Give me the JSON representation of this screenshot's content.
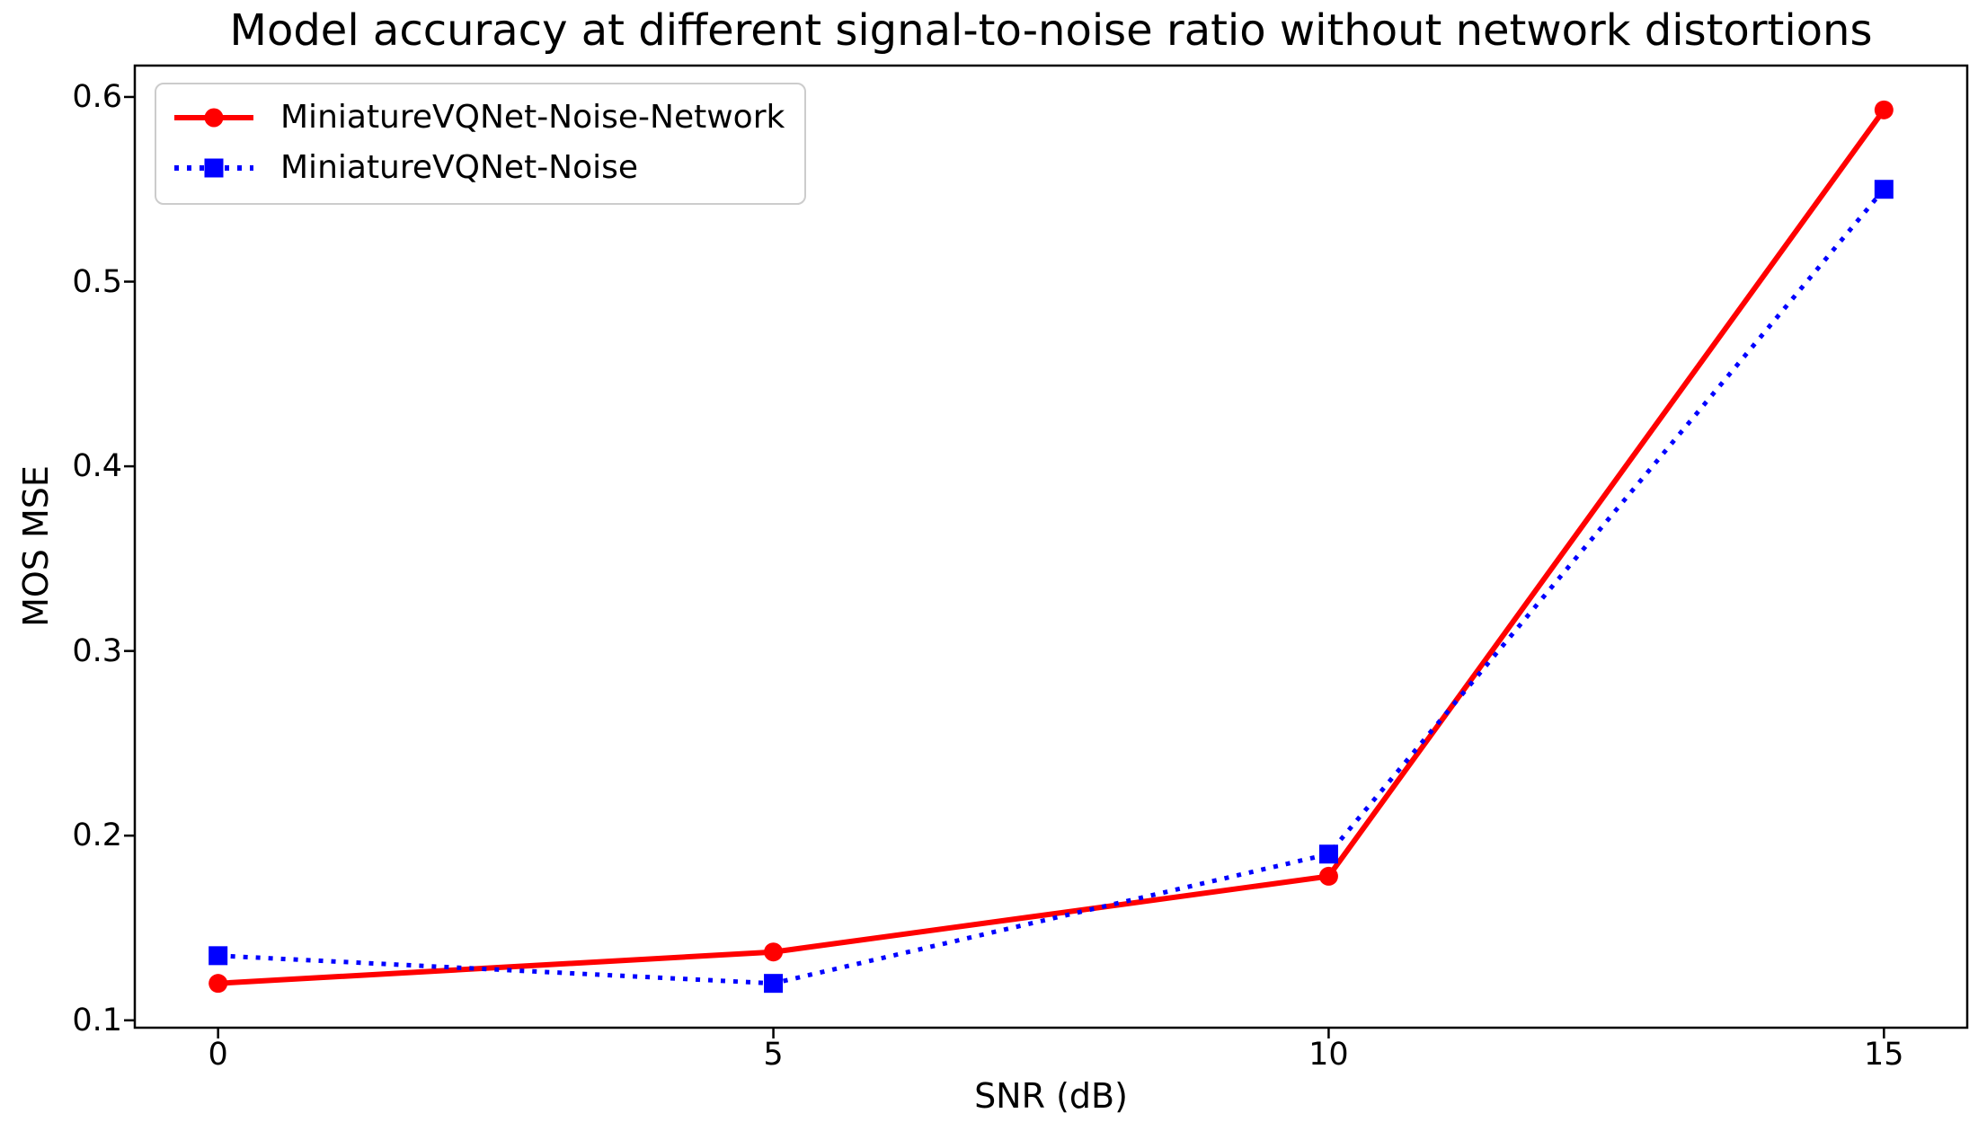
{
  "figure": {
    "background": "#ffffff",
    "text_color": "#000000",
    "axes_color": "#000000",
    "legend_border_color": "#cccccc"
  },
  "chart_data": {
    "type": "line",
    "title": "Model accuracy at different signal-to-noise ratio without network distortions",
    "xlabel": "SNR (dB)",
    "ylabel": "MOS MSE",
    "x": [
      0,
      5,
      10,
      15
    ],
    "xticks": [
      0,
      5,
      10,
      15
    ],
    "xtick_labels": [
      "0",
      "5",
      "10",
      "15"
    ],
    "yticks": [
      0.1,
      0.2,
      0.3,
      0.4,
      0.5,
      0.6
    ],
    "ytick_labels": [
      "0.1",
      "0.2",
      "0.3",
      "0.4",
      "0.5",
      "0.6"
    ],
    "xlim": [
      -0.75,
      15.75
    ],
    "ylim": [
      0.096,
      0.617
    ],
    "grid": false,
    "legend_position": "upper-left",
    "series": [
      {
        "name": "MiniatureVQNet-Noise-Network",
        "color": "#ff0000",
        "line_style": "solid",
        "marker": "circle",
        "values": [
          0.12,
          0.137,
          0.178,
          0.593
        ]
      },
      {
        "name": "MiniatureVQNet-Noise",
        "color": "#0000ff",
        "line_style": "dotted",
        "marker": "square",
        "values": [
          0.135,
          0.12,
          0.19,
          0.55
        ]
      }
    ]
  }
}
